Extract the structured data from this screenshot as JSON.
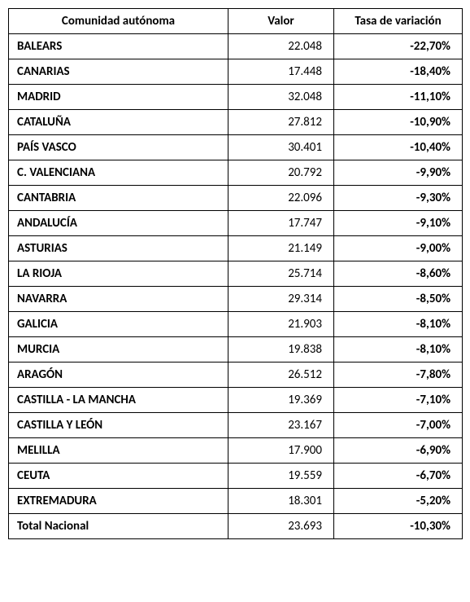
{
  "table": {
    "columns": [
      {
        "label": "Comunidad autónoma",
        "class": "col-comunidad"
      },
      {
        "label": "Valor",
        "class": "col-valor"
      },
      {
        "label": "Tasa de variación",
        "class": "col-tasa"
      }
    ],
    "rows": [
      {
        "name": "BALEARS",
        "valor": "22.048",
        "tasa": "-22,70%"
      },
      {
        "name": "CANARIAS",
        "valor": "17.448",
        "tasa": "-18,40%"
      },
      {
        "name": "MADRID",
        "valor": "32.048",
        "tasa": "-11,10%"
      },
      {
        "name": "CATALUÑA",
        "valor": "27.812",
        "tasa": "-10,90%"
      },
      {
        "name": "PAÍS VASCO",
        "valor": "30.401",
        "tasa": "-10,40%"
      },
      {
        "name": "C. VALENCIANA",
        "valor": "20.792",
        "tasa": "-9,90%"
      },
      {
        "name": "CANTABRIA",
        "valor": "22.096",
        "tasa": "-9,30%"
      },
      {
        "name": "ANDALUCÍA",
        "valor": "17.747",
        "tasa": "-9,10%"
      },
      {
        "name": "ASTURIAS",
        "valor": "21.149",
        "tasa": "-9,00%"
      },
      {
        "name": "LA RIOJA",
        "valor": "25.714",
        "tasa": "-8,60%"
      },
      {
        "name": "NAVARRA",
        "valor": "29.314",
        "tasa": "-8,50%"
      },
      {
        "name": "GALICIA",
        "valor": "21.903",
        "tasa": "-8,10%"
      },
      {
        "name": "MURCIA",
        "valor": "19.838",
        "tasa": "-8,10%"
      },
      {
        "name": "ARAGÓN",
        "valor": "26.512",
        "tasa": "-7,80%"
      },
      {
        "name": "CASTILLA - LA MANCHA",
        "valor": "19.369",
        "tasa": "-7,10%"
      },
      {
        "name": "CASTILLA Y LEÓN",
        "valor": "23.167",
        "tasa": "-7,00%"
      },
      {
        "name": "MELILLA",
        "valor": "17.900",
        "tasa": "-6,90%"
      },
      {
        "name": "CEUTA",
        "valor": "19.559",
        "tasa": "-6,70%"
      },
      {
        "name": "EXTREMADURA",
        "valor": "18.301",
        "tasa": "-5,20%"
      }
    ],
    "total": {
      "name": "Total Nacional",
      "valor": "23.693",
      "tasa": "-10,30%"
    },
    "styles": {
      "border_color": "#000000",
      "background_color": "#ffffff",
      "text_color": "#000000",
      "font_family": "Calibri",
      "font_size_pt": 11
    }
  }
}
